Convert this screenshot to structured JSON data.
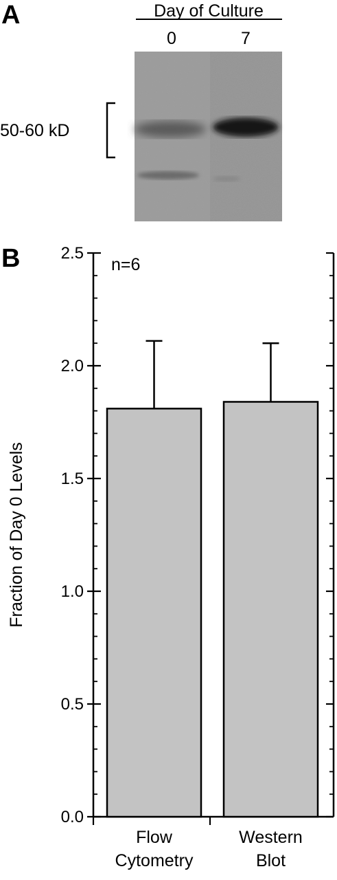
{
  "panel_a": {
    "letter": "A",
    "header": "Day of Culture",
    "lanes": [
      "0",
      "7"
    ],
    "band_label": "50-60 kD"
  },
  "panel_b": {
    "letter": "B",
    "annotation": "n=6"
  },
  "chart_data": {
    "type": "bar",
    "categories": [
      [
        "Flow",
        "Cytometry"
      ],
      [
        "Western",
        "Blot"
      ]
    ],
    "values": [
      1.81,
      1.84
    ],
    "error_plus": [
      0.3,
      0.26
    ],
    "ylabel": "Fraction of Day 0 Levels",
    "ylim": [
      0,
      2.5
    ],
    "yticks": [
      0.0,
      0.5,
      1.0,
      1.5,
      2.0,
      2.5
    ],
    "ytick_labels": [
      "0.0",
      "0.5",
      "1.0",
      "1.5",
      "2.0",
      "2.5"
    ],
    "minor_step": 0.1,
    "grid": false,
    "bar_color": "#c3c3c3"
  }
}
